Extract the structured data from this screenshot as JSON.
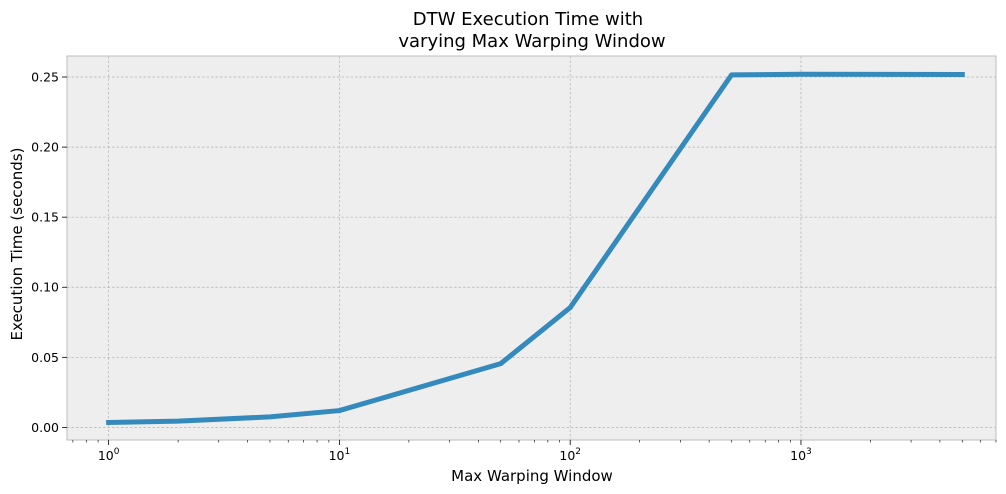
{
  "chart_data": {
    "type": "line",
    "title_line1": "DTW Execution Time with",
    "title_line2": "varying Max Warping Window",
    "xlabel": "Max Warping Window",
    "ylabel": "Execution Time (seconds)",
    "xscale": "log",
    "xlim": [
      0.66,
      7000
    ],
    "ylim": [
      -0.009,
      0.265
    ],
    "grid": true,
    "series": [
      {
        "color": "#348abd",
        "x": [
          1,
          2,
          5,
          10,
          50,
          100,
          500,
          1000,
          5000
        ],
        "y": [
          0.0035,
          0.0045,
          0.0075,
          0.012,
          0.0455,
          0.0855,
          0.2515,
          0.252,
          0.2518
        ]
      }
    ],
    "yticks": [
      {
        "value": 0.0,
        "label": "0.00"
      },
      {
        "value": 0.05,
        "label": "0.05"
      },
      {
        "value": 0.1,
        "label": "0.10"
      },
      {
        "value": 0.15,
        "label": "0.15"
      },
      {
        "value": 0.2,
        "label": "0.20"
      },
      {
        "value": 0.25,
        "label": "0.25"
      }
    ],
    "xticks": [
      {
        "value": 1,
        "base": "10",
        "exp": "0"
      },
      {
        "value": 10,
        "base": "10",
        "exp": "1"
      },
      {
        "value": 100,
        "base": "10",
        "exp": "2"
      },
      {
        "value": 1000,
        "base": "10",
        "exp": "3"
      }
    ],
    "colors": {
      "background": "#eeeeee",
      "grid": "#b2b2b2",
      "spine": "#bcbcbc"
    }
  }
}
